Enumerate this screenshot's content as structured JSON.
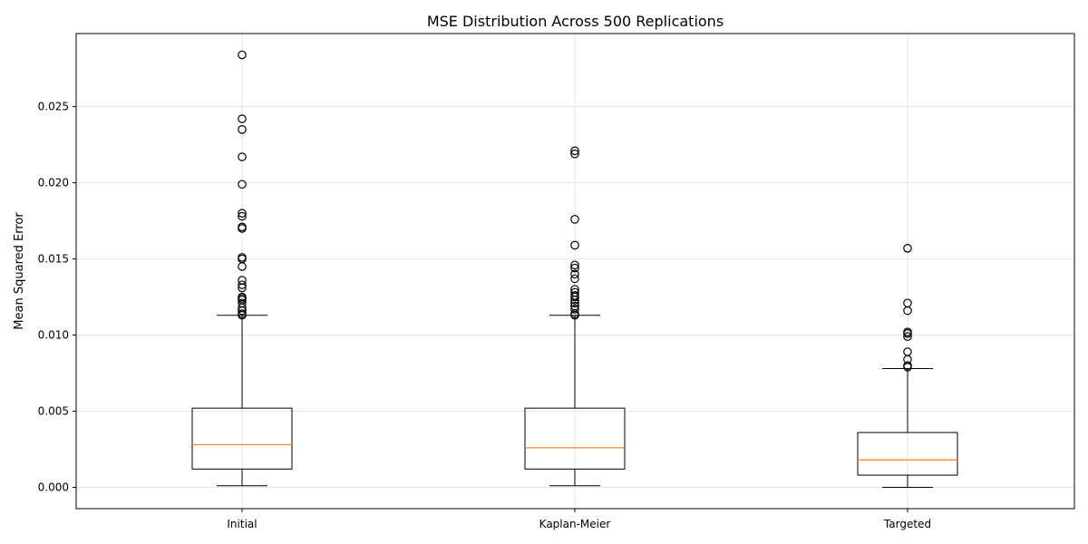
{
  "chart_data": {
    "type": "boxplot",
    "title": "MSE Distribution Across 500 Replications",
    "xlabel": "",
    "ylabel": "Mean Squared Error",
    "ylim": [
      -0.0014,
      0.0298
    ],
    "yticks": [
      "0.000",
      "0.005",
      "0.010",
      "0.015",
      "0.020",
      "0.025"
    ],
    "ytick_values": [
      0.0,
      0.005,
      0.01,
      0.015,
      0.02,
      0.025
    ],
    "grid": true,
    "categories": [
      "Initial",
      "Kaplan-Meier",
      "Targeted"
    ],
    "boxes": [
      {
        "category": "Initial",
        "whisker_low": 0.0001,
        "q1": 0.0012,
        "median": 0.0028,
        "q3": 0.0052,
        "whisker_high": 0.0113,
        "outliers": [
          0.0113,
          0.0114,
          0.0116,
          0.0118,
          0.0121,
          0.0123,
          0.0124,
          0.0125,
          0.0131,
          0.0133,
          0.0136,
          0.0145,
          0.015,
          0.0151,
          0.017,
          0.0171,
          0.0178,
          0.018,
          0.0199,
          0.0217,
          0.0235,
          0.0242,
          0.0284
        ]
      },
      {
        "category": "Kaplan-Meier",
        "whisker_low": 0.0001,
        "q1": 0.0012,
        "median": 0.0026,
        "q3": 0.0052,
        "whisker_high": 0.0113,
        "outliers": [
          0.0113,
          0.0114,
          0.0117,
          0.0119,
          0.0121,
          0.0123,
          0.0125,
          0.0126,
          0.0128,
          0.013,
          0.0137,
          0.014,
          0.0144,
          0.0146,
          0.0159,
          0.0176,
          0.0219,
          0.0221
        ]
      },
      {
        "category": "Targeted",
        "whisker_low": 0.0,
        "q1": 0.0008,
        "median": 0.0018,
        "q3": 0.0036,
        "whisker_high": 0.0078,
        "outliers": [
          0.0079,
          0.008,
          0.0084,
          0.0089,
          0.0099,
          0.0101,
          0.0102,
          0.0116,
          0.0121,
          0.0157
        ]
      }
    ],
    "colors": {
      "box": "#000000",
      "median": "#ff7f0e",
      "grid": "#e6e6e6",
      "axis": "#000000"
    }
  }
}
